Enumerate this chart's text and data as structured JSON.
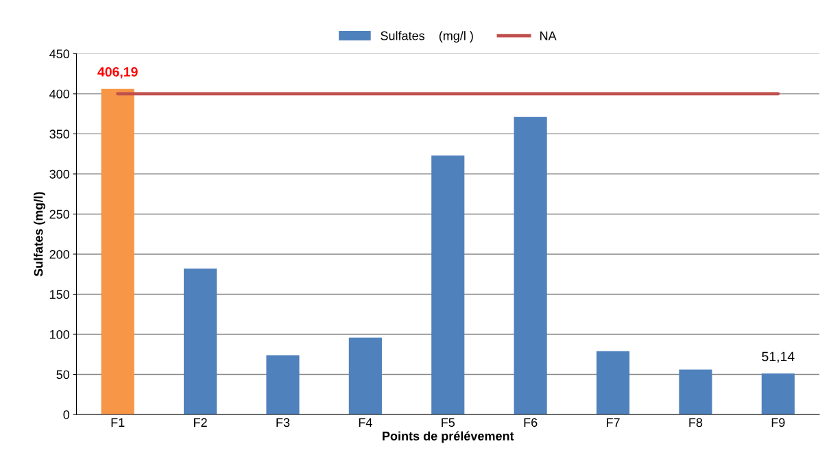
{
  "chart_data": {
    "type": "bar",
    "xlabel": "Points de prélévement",
    "ylabel": "Sulfates (mg/l)",
    "categories": [
      "F1",
      "F2",
      "F3",
      "F4",
      "F5",
      "F6",
      "F7",
      "F8",
      "F9"
    ],
    "series": [
      {
        "name": "Sulfates    (mg/l )",
        "color": "#4f81bd",
        "colors": [
          "#f79646",
          "#4f81bd",
          "#4f81bd",
          "#4f81bd",
          "#4f81bd",
          "#4f81bd",
          "#4f81bd",
          "#4f81bd",
          "#4f81bd"
        ],
        "values": [
          406.19,
          182,
          74,
          96,
          323,
          371,
          79,
          56,
          51.14
        ],
        "value_labels": [
          "406,19",
          null,
          null,
          null,
          null,
          null,
          null,
          null,
          "51,14"
        ]
      },
      {
        "name": "NA",
        "type": "line",
        "color": "#c0504d",
        "values": [
          400,
          400,
          400,
          400,
          400,
          400,
          400,
          400,
          400
        ]
      }
    ],
    "ylim": [
      0,
      450
    ],
    "yticks": [
      0,
      50,
      100,
      150,
      200,
      250,
      300,
      350,
      400,
      450
    ],
    "grid": "y",
    "legend": "top",
    "marker": "none",
    "line_style": "solid"
  }
}
